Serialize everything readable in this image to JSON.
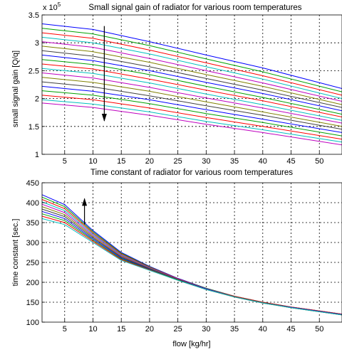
{
  "chart_data": [
    {
      "type": "line",
      "title": "Small signal gain of radiator for various room temperatures",
      "ylabel": "small signal gain [Q/q]",
      "xlabel": "",
      "scale_note": "x 10",
      "scale_exponent": "5",
      "xlim": [
        1,
        54
      ],
      "ylim": [
        1,
        3.5
      ],
      "xticks": [
        5,
        10,
        15,
        20,
        25,
        30,
        35,
        40,
        45,
        50
      ],
      "yticks": [
        1,
        1.5,
        2,
        2.5,
        3,
        3.5
      ],
      "ytick_labels": [
        "1",
        "1.5",
        "2",
        "2.5",
        "3",
        "3.5"
      ],
      "grid": true,
      "x": [
        1,
        10,
        20,
        30,
        40,
        54
      ],
      "series": [
        {
          "color": "#0000ff",
          "values": [
            3.34,
            3.24,
            3.02,
            2.78,
            2.55,
            2.18
          ]
        },
        {
          "color": "#00a000",
          "values": [
            3.26,
            3.16,
            2.95,
            2.71,
            2.48,
            2.12
          ]
        },
        {
          "color": "#ff0000",
          "values": [
            3.18,
            3.08,
            2.87,
            2.64,
            2.41,
            2.06
          ]
        },
        {
          "color": "#00bfbf",
          "values": [
            3.1,
            3.0,
            2.8,
            2.57,
            2.35,
            2.0
          ]
        },
        {
          "color": "#bf00bf",
          "values": [
            3.02,
            2.92,
            2.72,
            2.5,
            2.28,
            1.95
          ]
        },
        {
          "color": "#808000",
          "values": [
            2.94,
            2.84,
            2.65,
            2.43,
            2.22,
            1.89
          ]
        },
        {
          "color": "#404040",
          "values": [
            2.86,
            2.76,
            2.57,
            2.36,
            2.15,
            1.84
          ]
        },
        {
          "color": "#0000ff",
          "values": [
            2.78,
            2.68,
            2.5,
            2.29,
            2.09,
            1.78
          ]
        },
        {
          "color": "#00a000",
          "values": [
            2.7,
            2.61,
            2.43,
            2.22,
            2.02,
            1.72
          ]
        },
        {
          "color": "#ff0000",
          "values": [
            2.62,
            2.53,
            2.35,
            2.15,
            1.96,
            1.67
          ]
        },
        {
          "color": "#00bfbf",
          "values": [
            2.54,
            2.45,
            2.28,
            2.08,
            1.89,
            1.61
          ]
        },
        {
          "color": "#bf00bf",
          "values": [
            2.46,
            2.37,
            2.2,
            2.01,
            1.83,
            1.56
          ]
        },
        {
          "color": "#808000",
          "values": [
            2.38,
            2.29,
            2.13,
            1.94,
            1.76,
            1.5
          ]
        },
        {
          "color": "#404040",
          "values": [
            2.3,
            2.21,
            2.05,
            1.87,
            1.7,
            1.45
          ]
        },
        {
          "color": "#0000ff",
          "values": [
            2.22,
            2.13,
            1.98,
            1.8,
            1.63,
            1.39
          ]
        },
        {
          "color": "#00a000",
          "values": [
            2.14,
            2.06,
            1.91,
            1.73,
            1.57,
            1.33
          ]
        },
        {
          "color": "#ff0000",
          "values": [
            2.06,
            1.98,
            1.83,
            1.66,
            1.5,
            1.27
          ]
        },
        {
          "color": "#00bfbf",
          "values": [
            1.98,
            1.9,
            1.76,
            1.59,
            1.44,
            1.22
          ]
        },
        {
          "color": "#bf00bf",
          "values": [
            1.92,
            1.84,
            1.7,
            1.54,
            1.39,
            1.17
          ]
        }
      ],
      "arrow": {
        "x": 12,
        "from_y": 3.3,
        "to_y": 1.6,
        "direction": "down"
      }
    },
    {
      "type": "line",
      "title": "Time constant of radiator for various room temperatures",
      "xlabel": "flow [kg/hr]",
      "ylabel": "time constant [sec.]",
      "xlim": [
        1,
        54
      ],
      "ylim": [
        100,
        450
      ],
      "xticks": [
        5,
        10,
        15,
        20,
        25,
        30,
        35,
        40,
        45,
        50
      ],
      "yticks": [
        100,
        150,
        200,
        250,
        300,
        350,
        400,
        450
      ],
      "ytick_labels": [
        "100",
        "150",
        "200",
        "250",
        "300",
        "350",
        "400",
        "450"
      ],
      "grid": true,
      "x": [
        1,
        5,
        10,
        15,
        20,
        25,
        30,
        35,
        40,
        45,
        50,
        54
      ],
      "series": [
        {
          "color": "#0000ff",
          "values": [
            420,
            395,
            330,
            275,
            240,
            210,
            185,
            165,
            150,
            138,
            128,
            120
          ]
        },
        {
          "color": "#00a000",
          "values": [
            414,
            390,
            327,
            273,
            239,
            209,
            185,
            165,
            150,
            138,
            128,
            120
          ]
        },
        {
          "color": "#ff0000",
          "values": [
            408,
            385,
            324,
            271,
            238,
            209,
            184,
            165,
            150,
            138,
            128,
            120
          ]
        },
        {
          "color": "#00bfbf",
          "values": [
            402,
            380,
            321,
            269,
            237,
            208,
            184,
            164,
            149,
            137,
            127,
            119
          ]
        },
        {
          "color": "#bf00bf",
          "values": [
            396,
            375,
            318,
            267,
            236,
            208,
            184,
            164,
            149,
            137,
            127,
            119
          ]
        },
        {
          "color": "#808000",
          "values": [
            390,
            370,
            315,
            265,
            235,
            207,
            183,
            164,
            149,
            137,
            127,
            119
          ]
        },
        {
          "color": "#404040",
          "values": [
            384,
            365,
            312,
            263,
            234,
            207,
            183,
            164,
            149,
            137,
            127,
            119
          ]
        },
        {
          "color": "#0000ff",
          "values": [
            378,
            360,
            309,
            261,
            233,
            206,
            183,
            163,
            148,
            137,
            127,
            119
          ]
        },
        {
          "color": "#00a000",
          "values": [
            372,
            355,
            306,
            259,
            232,
            206,
            182,
            163,
            148,
            136,
            126,
            118
          ]
        },
        {
          "color": "#ff0000",
          "values": [
            366,
            350,
            303,
            257,
            231,
            205,
            182,
            163,
            148,
            136,
            126,
            118
          ]
        },
        {
          "color": "#00bfbf",
          "values": [
            360,
            345,
            300,
            255,
            230,
            205,
            182,
            163,
            148,
            136,
            126,
            118
          ]
        }
      ],
      "arrow": {
        "x": 8.5,
        "from_y": 345,
        "to_y": 410,
        "direction": "up"
      }
    }
  ]
}
